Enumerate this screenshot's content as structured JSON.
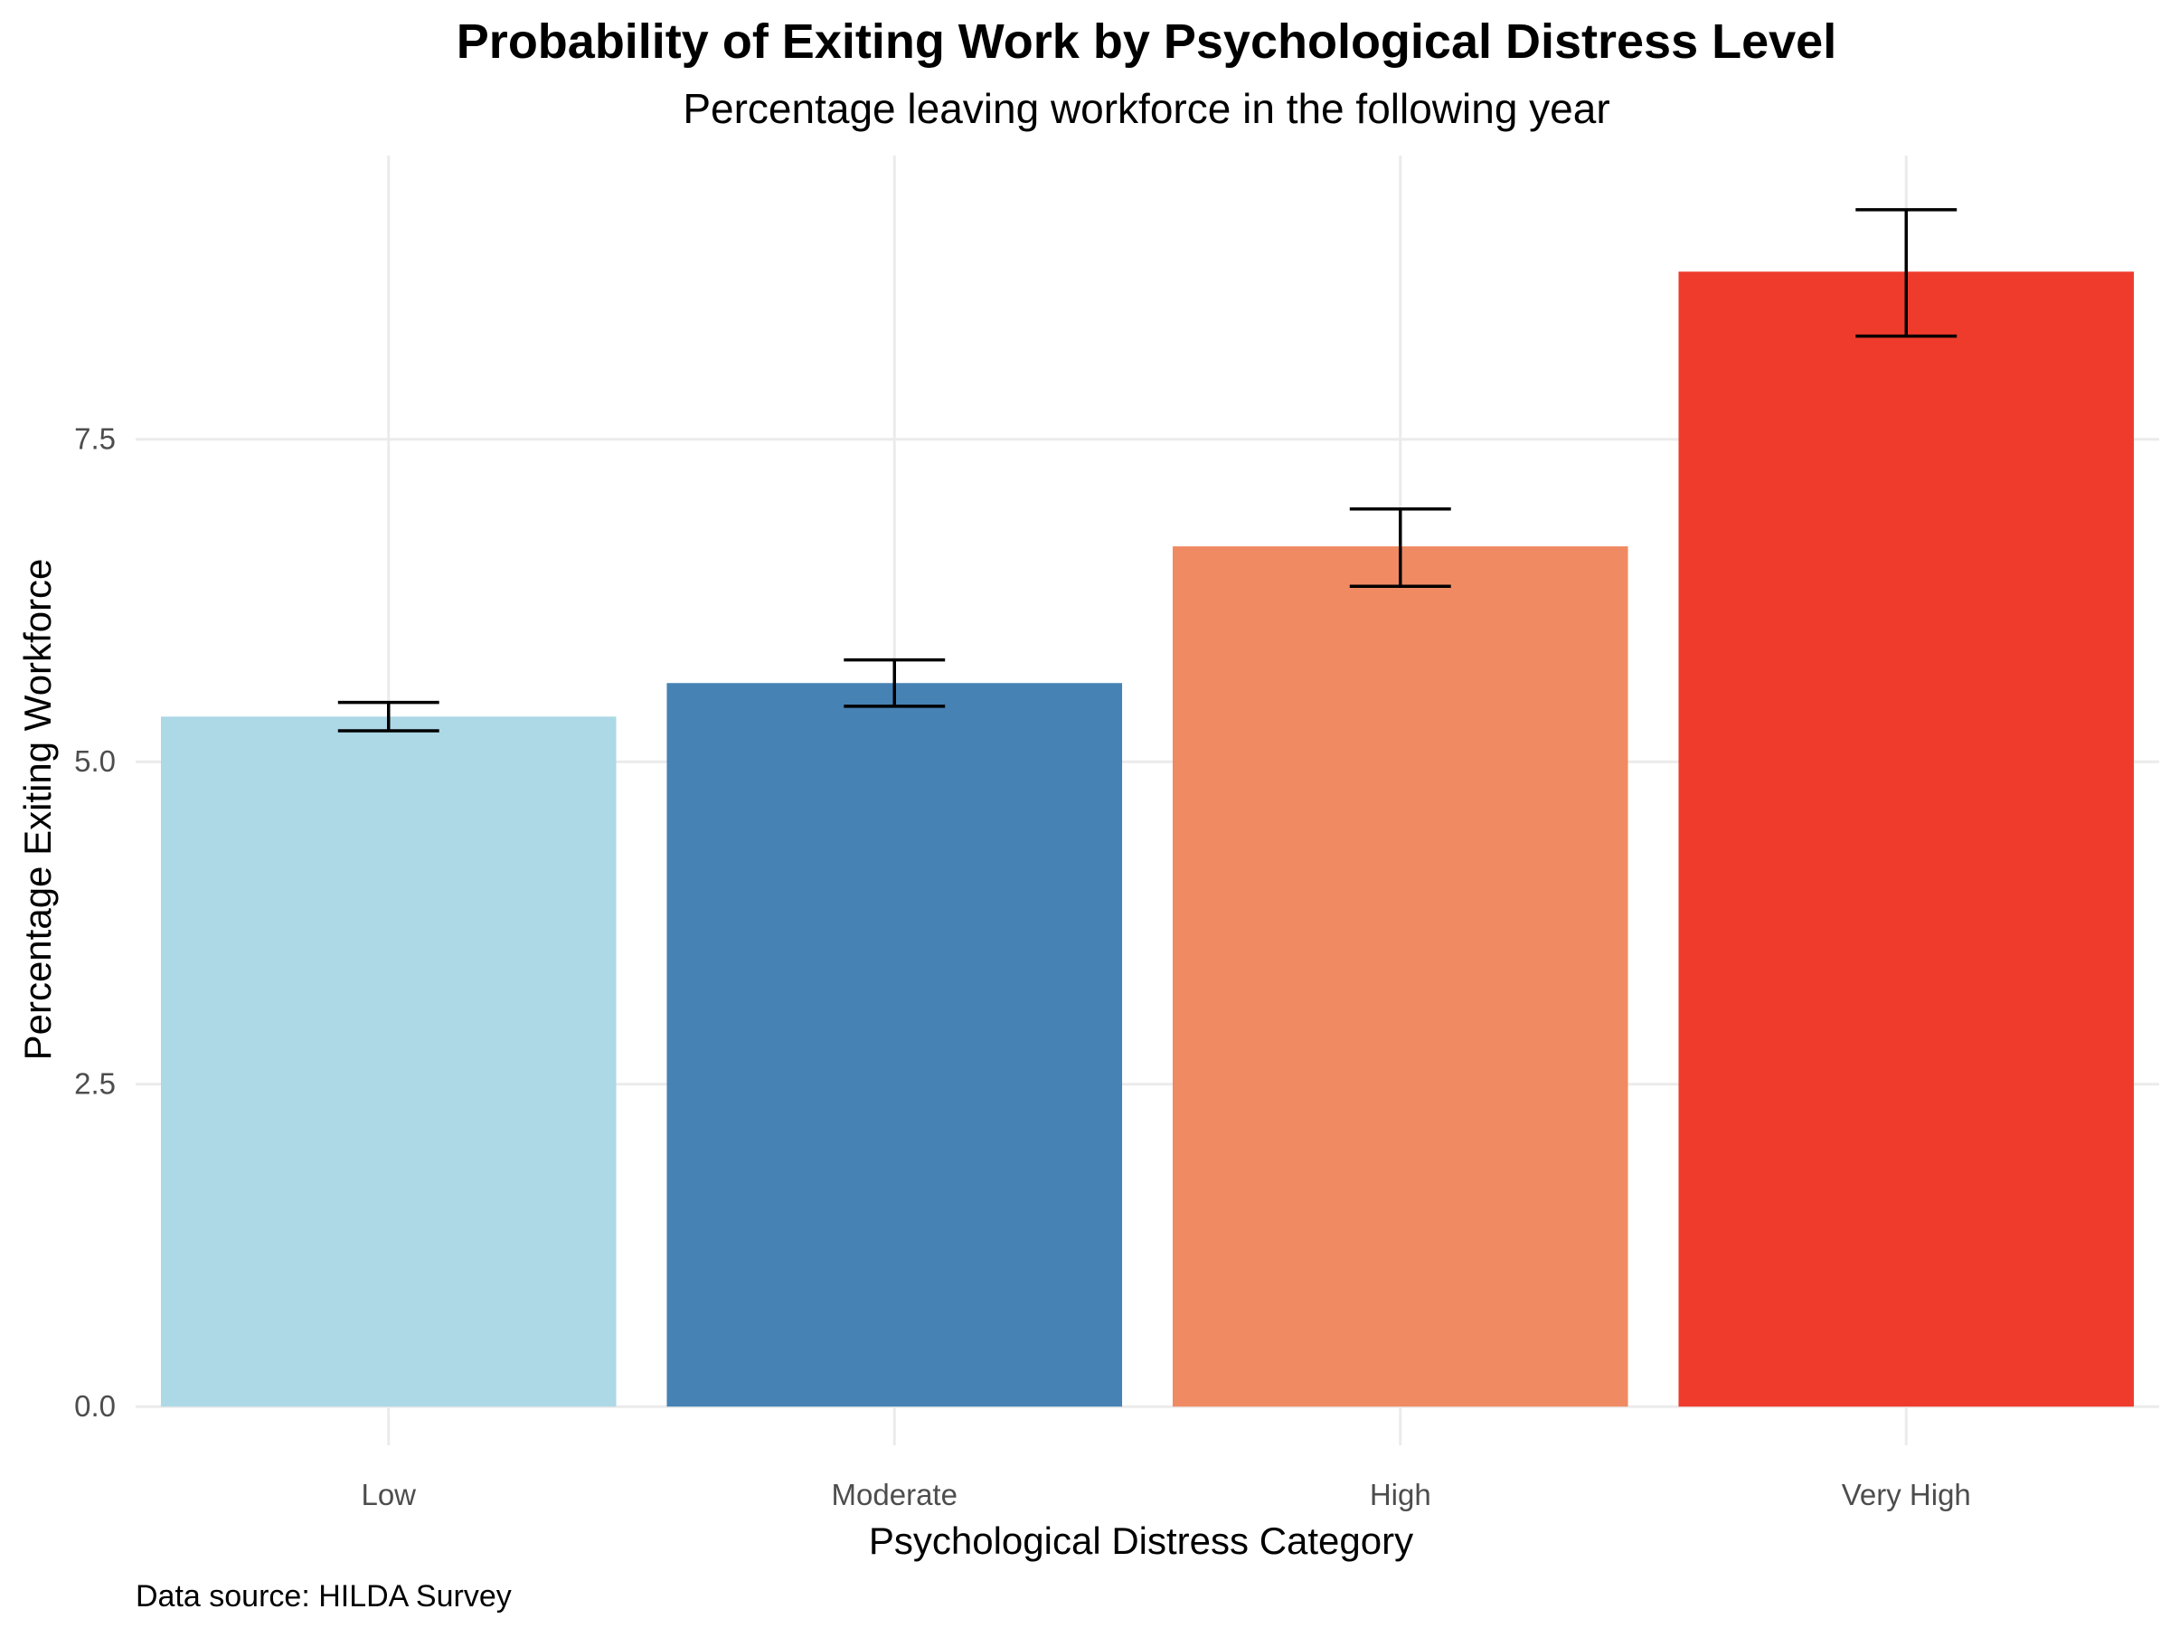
{
  "chart_data": {
    "type": "bar",
    "title": "Probability of Exiting Work by Psychological Distress Level",
    "subtitle": "Percentage leaving workforce in the following year",
    "xlabel": "Psychological Distress Category",
    "ylabel": "Percentage Exiting Workforce",
    "caption": "Data source: HILDA Survey",
    "categories": [
      "Low",
      "Moderate",
      "High",
      "Very High"
    ],
    "values": [
      5.35,
      5.61,
      6.67,
      8.8
    ],
    "error_lower": [
      5.24,
      5.43,
      6.36,
      8.3
    ],
    "error_upper": [
      5.46,
      5.79,
      6.96,
      9.28
    ],
    "colors": [
      "#add8e6",
      "#4682b4",
      "#f08a62",
      "#ef3b2c"
    ],
    "ylim": [
      -0.3,
      9.7
    ],
    "yticks": [
      0.0,
      2.5,
      5.0,
      7.5
    ],
    "ytick_labels": [
      "0.0",
      "2.5",
      "5.0",
      "7.5"
    ],
    "grid": true,
    "legend": "none"
  }
}
